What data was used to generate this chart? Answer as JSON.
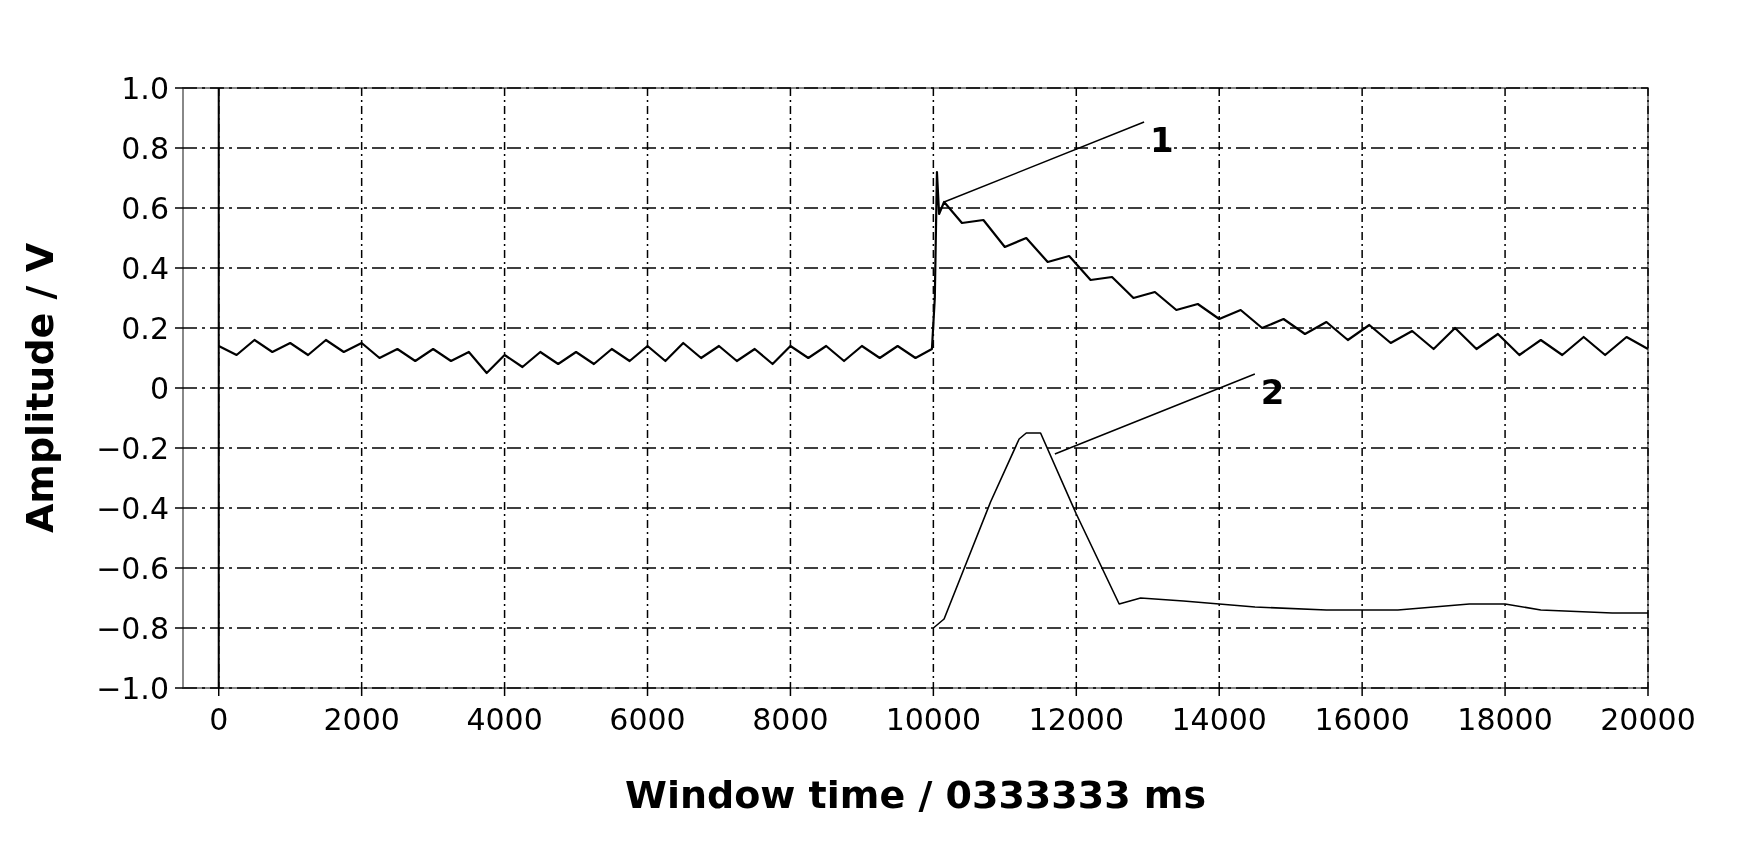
{
  "chart_data": {
    "type": "line",
    "xlabel": "Window time / 0333333 ms",
    "ylabel": "Amplitude / V",
    "xlim": [
      -500,
      20000
    ],
    "xticks": [
      0,
      2000,
      4000,
      6000,
      8000,
      10000,
      12000,
      14000,
      16000,
      18000,
      20000
    ],
    "ylim": [
      -1.0,
      1.0
    ],
    "yticks": [
      {
        "value": -1,
        "label": "−1.0"
      },
      {
        "value": -0.8,
        "label": "−0.8"
      },
      {
        "value": -0.6,
        "label": "−0.6"
      },
      {
        "value": -0.4,
        "label": "−0.4"
      },
      {
        "value": -0.2,
        "label": "−0.2"
      },
      0,
      {
        "value": 0.2,
        "label": "0.2"
      },
      {
        "value": 0.4,
        "label": "0.4"
      },
      {
        "value": 0.6,
        "label": "0.6"
      },
      {
        "value": 0.8,
        "label": "0.8"
      },
      {
        "value": 1,
        "label": "1.0"
      }
    ],
    "grid": true,
    "line_style": "solid",
    "series": [
      {
        "color": "#000000",
        "x": [
          0,
          250,
          500,
          750,
          1000,
          1250,
          1500,
          1750,
          2000,
          2250,
          2500,
          2750,
          3000,
          3250,
          3500,
          3750,
          4000,
          4250,
          4500,
          4750,
          5000,
          5250,
          5500,
          5750,
          6000,
          6250,
          6500,
          6750,
          7000,
          7250,
          7500,
          7750,
          8000,
          8250,
          8500,
          8750,
          9000,
          9250,
          9500,
          9750,
          9980,
          10020,
          10050,
          10080,
          10150,
          10400,
          10700,
          11000,
          11300,
          11600,
          11900,
          12200,
          12500,
          12800,
          13100,
          13400,
          13700,
          14000,
          14300,
          14600,
          14900,
          15200,
          15500,
          15800,
          16100,
          16400,
          16700,
          17000,
          17300,
          17600,
          17900,
          18200,
          18500,
          18800,
          19100,
          19400,
          19700,
          20000
        ],
        "values": [
          0.14,
          0.11,
          0.16,
          0.12,
          0.15,
          0.11,
          0.16,
          0.12,
          0.15,
          0.1,
          0.13,
          0.09,
          0.13,
          0.09,
          0.12,
          0.05,
          0.11,
          0.07,
          0.12,
          0.08,
          0.12,
          0.08,
          0.13,
          0.09,
          0.14,
          0.09,
          0.15,
          0.1,
          0.14,
          0.09,
          0.13,
          0.08,
          0.14,
          0.1,
          0.14,
          0.09,
          0.14,
          0.1,
          0.14,
          0.1,
          0.13,
          0.3,
          0.72,
          0.58,
          0.62,
          0.55,
          0.56,
          0.47,
          0.5,
          0.42,
          0.44,
          0.36,
          0.37,
          0.3,
          0.32,
          0.26,
          0.28,
          0.23,
          0.26,
          0.2,
          0.23,
          0.18,
          0.22,
          0.16,
          0.21,
          0.15,
          0.19,
          0.13,
          0.2,
          0.13,
          0.18,
          0.11,
          0.16,
          0.11,
          0.17,
          0.11,
          0.17,
          0.13
        ]
      },
      {
        "color": "#000000",
        "x": [
          10000,
          10150,
          10400,
          10800,
          11200,
          11300,
          11500,
          12000,
          12600,
          12900,
          13500,
          14500,
          15500,
          16500,
          17500,
          18000,
          18500,
          19500,
          20000
        ],
        "values": [
          -0.8,
          -0.77,
          -0.62,
          -0.38,
          -0.17,
          -0.15,
          -0.15,
          -0.42,
          -0.72,
          -0.7,
          -0.71,
          -0.73,
          -0.74,
          -0.74,
          -0.72,
          -0.72,
          -0.74,
          -0.75,
          -0.75
        ]
      }
    ],
    "annotations": [
      {
        "text": "1",
        "x": 10150,
        "y": 0.62
      },
      {
        "text": "2",
        "x": 11700,
        "y": -0.22
      }
    ]
  }
}
